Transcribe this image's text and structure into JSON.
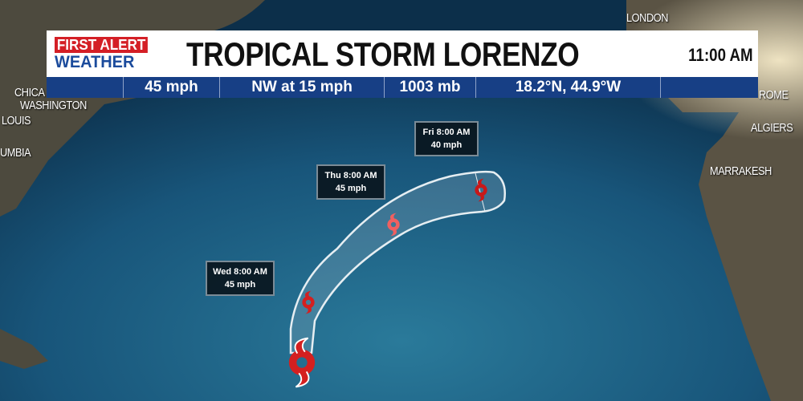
{
  "header": {
    "logo_line1": "FIRST ALERT",
    "logo_line2": "WEATHER",
    "title": "TROPICAL STORM LORENZO",
    "time": "11:00 AM"
  },
  "info": {
    "wind": "45 mph",
    "movement": "NW at 15 mph",
    "pressure": "1003 mb",
    "position": "18.2°N, 44.9°W"
  },
  "map": {
    "cities": [
      "LONDON",
      "CHICA",
      "WASHINGTON",
      "LOUIS",
      "UMBIA",
      "ROME",
      "ALGIERS",
      "MARRAKESH"
    ]
  },
  "forecast": [
    {
      "time": "Wed 8:00 AM",
      "wind": "45 mph"
    },
    {
      "time": "Thu 8:00 AM",
      "wind": "45 mph"
    },
    {
      "time": "Fri 8:00 AM",
      "wind": "40 mph"
    }
  ],
  "colors": {
    "ocean": "#1a5b7e",
    "land": "#5a5344",
    "storm_icon": "#d42020",
    "brand_red": "#d41f26",
    "brand_blue": "#173f85"
  },
  "icons": [
    "tropical-storm-icon"
  ]
}
